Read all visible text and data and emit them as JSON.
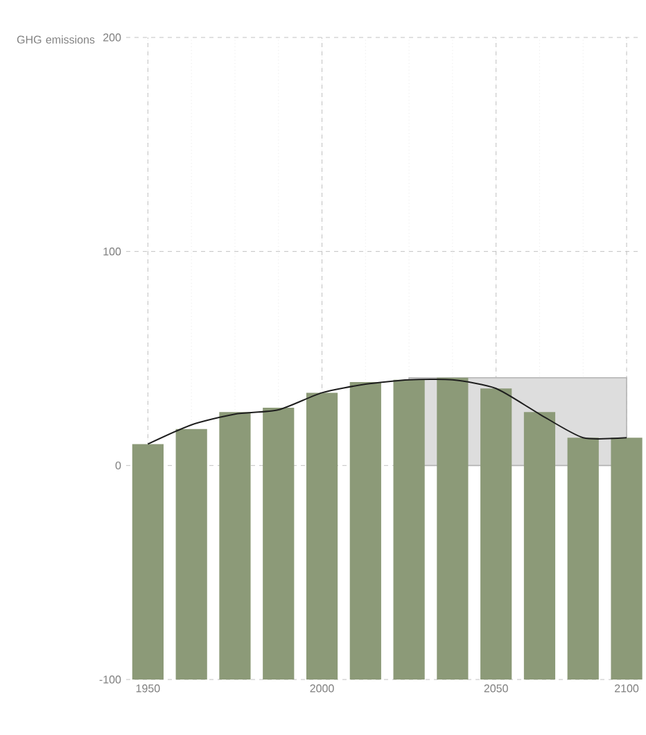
{
  "chart_data": {
    "type": "bar",
    "ylabel": "GHG emissions",
    "categories": [
      "1950",
      null,
      null,
      null,
      "2000",
      null,
      null,
      null,
      "2050",
      null,
      null,
      "2100"
    ],
    "series": [
      {
        "color": "#8c9a78",
        "base": [
          -100,
          -100,
          -100,
          -100,
          -100,
          -100,
          -100,
          -100,
          -100,
          -100,
          -100,
          -100
        ],
        "values": [
          110,
          117,
          125,
          127,
          134,
          139,
          140,
          141,
          136,
          125,
          113,
          113
        ]
      },
      {
        "type": "area",
        "color": "#b4b4b4",
        "values": [
          null,
          null,
          null,
          null,
          null,
          null,
          41,
          41,
          41,
          41,
          41,
          41
        ]
      },
      {
        "type": "line",
        "color": "#1e1e1e",
        "values": [
          10,
          19,
          24,
          26,
          34,
          38,
          40,
          40,
          36,
          24,
          13,
          13
        ]
      }
    ],
    "ylim": [
      -100,
      200
    ],
    "yticks": [
      -100,
      0,
      100,
      200
    ],
    "grid": true
  }
}
